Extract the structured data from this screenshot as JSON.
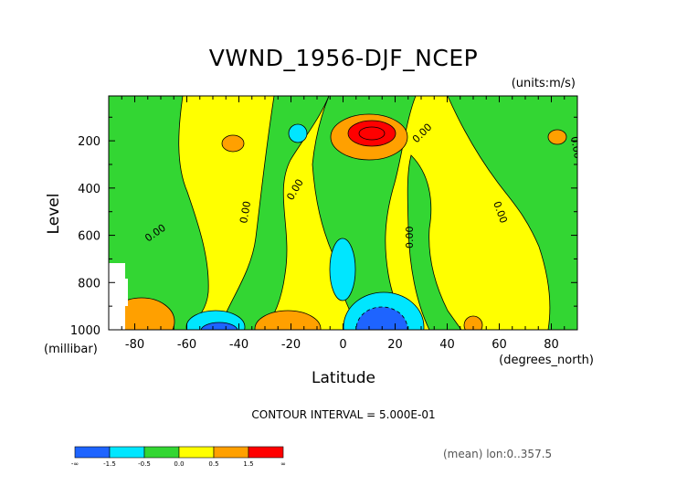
{
  "chart_data": {
    "type": "heatmap",
    "title": "VWND_1956-DJF_NCEP",
    "units_note": "(units:m/s)",
    "xlabel": "Latitude",
    "x_unit_note": "(degrees_north)",
    "ylabel": "Level",
    "y_unit_note": "(millibar)",
    "xlim": [
      -90,
      90
    ],
    "ylim": [
      1000,
      10
    ],
    "y_inverted": true,
    "x_ticks": [
      "-80",
      "-60",
      "-40",
      "-20",
      "0",
      "20",
      "40",
      "60",
      "80"
    ],
    "x_tick_values": [
      -80,
      -60,
      -40,
      -20,
      0,
      20,
      40,
      60,
      80
    ],
    "y_ticks": [
      "200",
      "400",
      "600",
      "800",
      "1000"
    ],
    "y_tick_values": [
      200,
      400,
      600,
      800,
      1000
    ],
    "contour_interval_text": "CONTOUR INTERVAL = 5.000E-01",
    "contour_labels": [
      "0.00",
      "0.00",
      "0.00",
      "0.00",
      "0.00",
      "0.00",
      "0.00"
    ],
    "colorbar": {
      "labels": [
        "-∞",
        "-1.5",
        "-0.5",
        "0.0",
        "0.5",
        "1.5",
        "∞"
      ],
      "colors": [
        "#1e64ff",
        "#00e6ff",
        "#33d633",
        "#ffff00",
        "#ffa000",
        "#ff0000"
      ]
    },
    "footer_note": "(mean) lon:0..357.5",
    "field_regions": [
      {
        "name": "tropopause-jet-max",
        "lat": 10,
        "lev": 150,
        "value": 2.0
      },
      {
        "name": "surface-min-south",
        "lat": -48,
        "lev": 980,
        "value": -1.5
      },
      {
        "name": "surface-min-eq",
        "lat": 12,
        "lev": 950,
        "value": -2.0
      },
      {
        "name": "mid-min-eq",
        "lat": -5,
        "lev": 760,
        "value": -0.8
      },
      {
        "name": "upper-min",
        "lat": -18,
        "lev": 170,
        "value": -0.6
      },
      {
        "name": "surface-max-south",
        "lat": -25,
        "lev": 980,
        "value": 1.5
      }
    ]
  }
}
